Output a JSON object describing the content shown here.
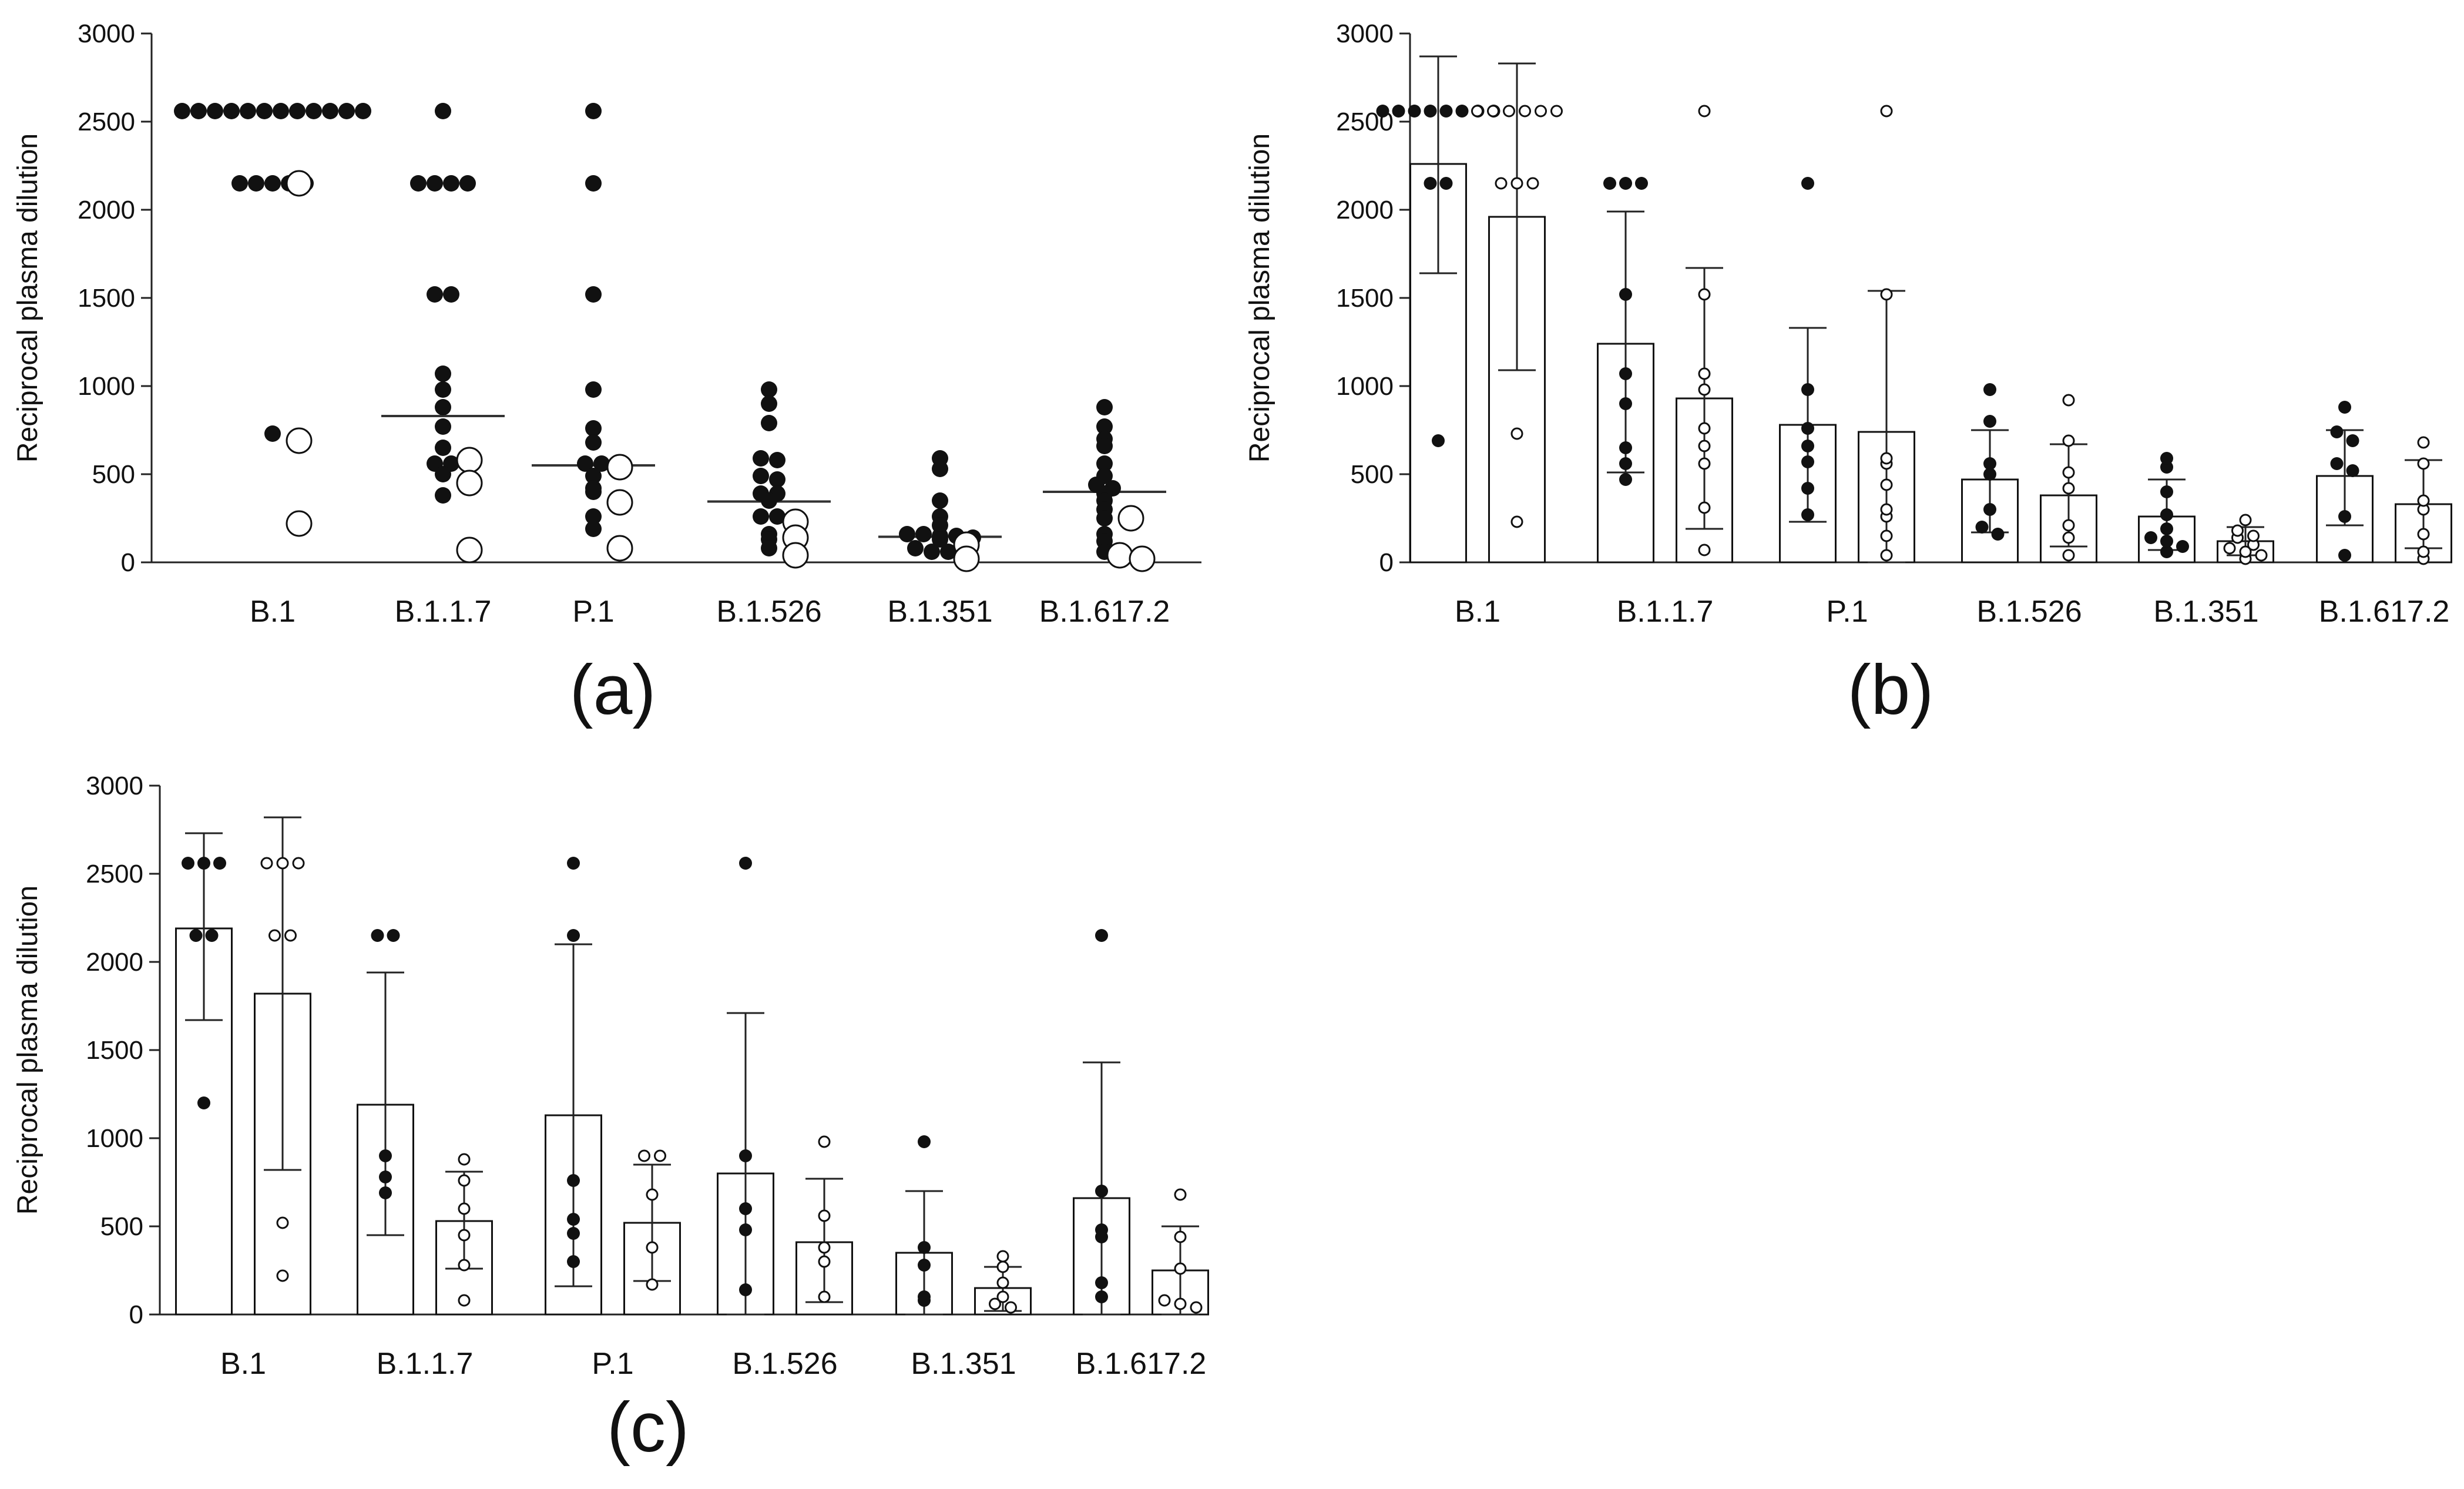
{
  "figure": {
    "panel_labels": [
      "(a)",
      "(b)",
      "(c)"
    ]
  },
  "chart_data": [
    {
      "panel": "(a)",
      "type": "scatter",
      "ylabel": "Reciprocal plasma dilution",
      "ylim": [
        0,
        3000
      ],
      "yticks": [
        0,
        500,
        1000,
        1500,
        2000,
        2500,
        3000
      ],
      "categories": [
        "B.1",
        "B.1.1.7",
        "P.1",
        "B.1.526",
        "B.1.351",
        "B.1.617.2"
      ],
      "medians": [
        null,
        830,
        550,
        345,
        145,
        400
      ],
      "series": [
        {
          "name": "filled",
          "points": [
            [
              "B.1",
              2560
            ],
            [
              "B.1",
              2560
            ],
            [
              "B.1",
              2560
            ],
            [
              "B.1",
              2560
            ],
            [
              "B.1",
              2560
            ],
            [
              "B.1",
              2560
            ],
            [
              "B.1",
              2560
            ],
            [
              "B.1",
              2560
            ],
            [
              "B.1",
              2560
            ],
            [
              "B.1",
              2560
            ],
            [
              "B.1",
              2560
            ],
            [
              "B.1",
              2560
            ],
            [
              "B.1",
              2150
            ],
            [
              "B.1",
              2150
            ],
            [
              "B.1",
              2150
            ],
            [
              "B.1",
              2150
            ],
            [
              "B.1",
              2150
            ],
            [
              "B.1",
              730
            ],
            [
              "B.1.1.7",
              2560
            ],
            [
              "B.1.1.7",
              2150
            ],
            [
              "B.1.1.7",
              2150
            ],
            [
              "B.1.1.7",
              2150
            ],
            [
              "B.1.1.7",
              2150
            ],
            [
              "B.1.1.7",
              1520
            ],
            [
              "B.1.1.7",
              1520
            ],
            [
              "B.1.1.7",
              1070
            ],
            [
              "B.1.1.7",
              980
            ],
            [
              "B.1.1.7",
              880
            ],
            [
              "B.1.1.7",
              770
            ],
            [
              "B.1.1.7",
              650
            ],
            [
              "B.1.1.7",
              560
            ],
            [
              "B.1.1.7",
              560
            ],
            [
              "B.1.1.7",
              500
            ],
            [
              "B.1.1.7",
              380
            ],
            [
              "P.1",
              2560
            ],
            [
              "P.1",
              2150
            ],
            [
              "P.1",
              1520
            ],
            [
              "P.1",
              980
            ],
            [
              "P.1",
              760
            ],
            [
              "P.1",
              680
            ],
            [
              "P.1",
              560
            ],
            [
              "P.1",
              560
            ],
            [
              "P.1",
              490
            ],
            [
              "P.1",
              420
            ],
            [
              "P.1",
              400
            ],
            [
              "P.1",
              260
            ],
            [
              "P.1",
              190
            ],
            [
              "B.1.526",
              980
            ],
            [
              "B.1.526",
              900
            ],
            [
              "B.1.526",
              790
            ],
            [
              "B.1.526",
              590
            ],
            [
              "B.1.526",
              580
            ],
            [
              "B.1.526",
              490
            ],
            [
              "B.1.526",
              470
            ],
            [
              "B.1.526",
              390
            ],
            [
              "B.1.526",
              390
            ],
            [
              "B.1.526",
              350
            ],
            [
              "B.1.526",
              260
            ],
            [
              "B.1.526",
              260
            ],
            [
              "B.1.526",
              160
            ],
            [
              "B.1.526",
              130
            ],
            [
              "B.1.526",
              80
            ],
            [
              "B.1.351",
              590
            ],
            [
              "B.1.351",
              530
            ],
            [
              "B.1.351",
              350
            ],
            [
              "B.1.351",
              260
            ],
            [
              "B.1.351",
              210
            ],
            [
              "B.1.351",
              160
            ],
            [
              "B.1.351",
              160
            ],
            [
              "B.1.351",
              150
            ],
            [
              "B.1.351",
              150
            ],
            [
              "B.1.351",
              140
            ],
            [
              "B.1.351",
              130
            ],
            [
              "B.1.351",
              80
            ],
            [
              "B.1.351",
              60
            ],
            [
              "B.1.351",
              60
            ],
            [
              "B.1.351",
              60
            ],
            [
              "B.1.617.2",
              880
            ],
            [
              "B.1.617.2",
              770
            ],
            [
              "B.1.617.2",
              700
            ],
            [
              "B.1.617.2",
              660
            ],
            [
              "B.1.617.2",
              560
            ],
            [
              "B.1.617.2",
              490
            ],
            [
              "B.1.617.2",
              440
            ],
            [
              "B.1.617.2",
              420
            ],
            [
              "B.1.617.2",
              390
            ],
            [
              "B.1.617.2",
              350
            ],
            [
              "B.1.617.2",
              300
            ],
            [
              "B.1.617.2",
              250
            ],
            [
              "B.1.617.2",
              160
            ],
            [
              "B.1.617.2",
              120
            ],
            [
              "B.1.617.2",
              60
            ]
          ]
        },
        {
          "name": "open",
          "points": [
            [
              "B.1",
              2150
            ],
            [
              "B.1",
              690
            ],
            [
              "B.1",
              220
            ],
            [
              "B.1.1.7",
              580
            ],
            [
              "B.1.1.7",
              450
            ],
            [
              "B.1.1.7",
              70
            ],
            [
              "P.1",
              540
            ],
            [
              "P.1",
              340
            ],
            [
              "P.1",
              80
            ],
            [
              "B.1.526",
              230
            ],
            [
              "B.1.526",
              140
            ],
            [
              "B.1.526",
              40
            ],
            [
              "B.1.351",
              100
            ],
            [
              "B.1.351",
              20
            ],
            [
              "B.1.617.2",
              250
            ],
            [
              "B.1.617.2",
              40
            ],
            [
              "B.1.617.2",
              20
            ]
          ]
        }
      ]
    },
    {
      "panel": "(b)",
      "type": "bar",
      "ylabel": "Reciprocal plasma dilution",
      "ylim": [
        0,
        3000
      ],
      "yticks": [
        0,
        500,
        1000,
        1500,
        2000,
        2500,
        3000
      ],
      "categories": [
        "B.1",
        "B.1.1.7",
        "P.1",
        "B.1.526",
        "B.1.351",
        "B.1.617.2"
      ],
      "series": [
        {
          "name": "filled",
          "values": [
            2260,
            1240,
            780,
            470,
            260,
            490
          ],
          "err_low": [
            1640,
            510,
            230,
            170,
            70,
            210
          ],
          "err_high": [
            2870,
            1990,
            1330,
            750,
            470,
            750
          ],
          "points": [
            [
              2560,
              2560,
              2560,
              2560,
              2560,
              2560,
              2560,
              2560,
              2150,
              2150,
              690
            ],
            [
              2150,
              2150,
              2150,
              1520,
              1070,
              900,
              650,
              560,
              470
            ],
            [
              2150,
              980,
              760,
              660,
              570,
              420,
              270
            ],
            [
              980,
              800,
              560,
              500,
              300,
              200,
              160
            ],
            [
              590,
              540,
              400,
              270,
              190,
              140,
              120,
              90,
              60
            ],
            [
              880,
              740,
              690,
              560,
              520,
              260,
              40
            ]
          ]
        },
        {
          "name": "open",
          "values": [
            1960,
            930,
            740,
            380,
            120,
            330
          ],
          "err_low": [
            1090,
            190,
            0,
            90,
            40,
            80
          ],
          "err_high": [
            2830,
            1670,
            1540,
            670,
            200,
            580
          ],
          "points": [
            [
              2560,
              2560,
              2560,
              2560,
              2560,
              2560,
              2150,
              2150,
              2150,
              730,
              230
            ],
            [
              2560,
              1520,
              1070,
              980,
              760,
              660,
              560,
              310,
              70
            ],
            [
              2560,
              1520,
              590,
              560,
              440,
              300,
              260,
              150,
              40
            ],
            [
              920,
              690,
              510,
              420,
              210,
              140,
              40
            ],
            [
              240,
              180,
              150,
              140,
              100,
              80,
              60,
              40,
              20
            ],
            [
              680,
              560,
              350,
              300,
              160,
              60,
              20
            ]
          ]
        }
      ]
    },
    {
      "panel": "(c)",
      "type": "bar",
      "ylabel": "Reciprocal plasma dilution",
      "ylim": [
        0,
        3000
      ],
      "yticks": [
        0,
        500,
        1000,
        1500,
        2000,
        2500,
        3000
      ],
      "categories": [
        "B.1",
        "B.1.1.7",
        "P.1",
        "B.1.526",
        "B.1.351",
        "B.1.617.2"
      ],
      "series": [
        {
          "name": "filled",
          "values": [
            2190,
            1190,
            1130,
            800,
            350,
            660
          ],
          "err_low": [
            1670,
            450,
            160,
            0,
            0,
            0
          ],
          "err_high": [
            2730,
            1940,
            2100,
            1710,
            700,
            1430
          ],
          "points": [
            [
              2560,
              2560,
              2560,
              2150,
              2150,
              1200
            ],
            [
              2150,
              2150,
              900,
              780,
              690
            ],
            [
              2560,
              2150,
              760,
              540,
              460,
              300
            ],
            [
              2560,
              900,
              600,
              480,
              140
            ],
            [
              980,
              380,
              280,
              100,
              80
            ],
            [
              2150,
              700,
              480,
              440,
              180,
              100
            ]
          ]
        },
        {
          "name": "open",
          "values": [
            1820,
            530,
            520,
            410,
            150,
            250
          ],
          "err_low": [
            820,
            260,
            190,
            70,
            20,
            0
          ],
          "err_high": [
            2820,
            810,
            850,
            770,
            270,
            500
          ],
          "points": [
            [
              2560,
              2560,
              2560,
              2150,
              2150,
              520,
              220
            ],
            [
              880,
              760,
              600,
              450,
              280,
              80
            ],
            [
              900,
              900,
              680,
              380,
              170
            ],
            [
              980,
              560,
              380,
              300,
              100
            ],
            [
              330,
              270,
              180,
              100,
              60,
              40
            ],
            [
              680,
              440,
              260,
              80,
              60,
              40
            ]
          ]
        }
      ]
    }
  ]
}
